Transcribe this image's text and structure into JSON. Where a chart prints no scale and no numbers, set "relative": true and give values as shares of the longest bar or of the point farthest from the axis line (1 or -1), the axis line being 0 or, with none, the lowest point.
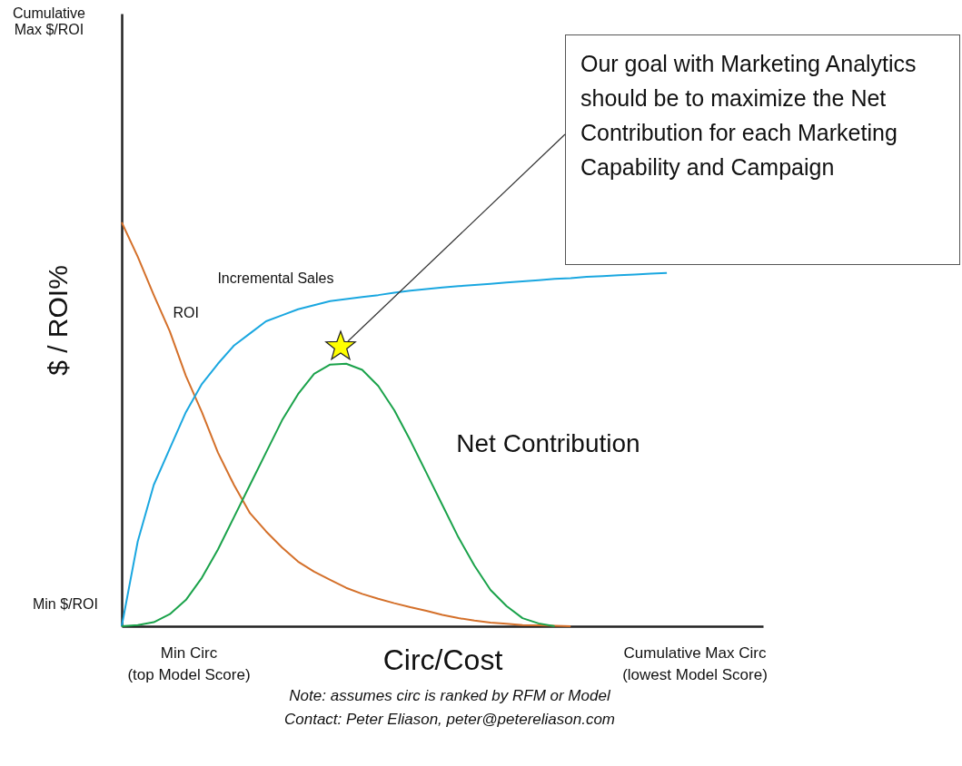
{
  "chart_data": {
    "type": "line",
    "relative": true,
    "xlabel": "Circ/Cost",
    "ylabel": "$ / ROI%",
    "categories": [
      null,
      null,
      null,
      null,
      null,
      null,
      null,
      null,
      null,
      null,
      null,
      null,
      null,
      null,
      null,
      null,
      null,
      null,
      null,
      null,
      null,
      null,
      null,
      null,
      null,
      null,
      null,
      null,
      null,
      null,
      null,
      null,
      null,
      null,
      null
    ],
    "series": [
      {
        "name": "ROI",
        "color": "#d4702a",
        "values": [
          1,
          0.915,
          0.82,
          0.73,
          0.62,
          0.53,
          0.43,
          0.35,
          0.28,
          0.235,
          0.195,
          0.16,
          0.135,
          0.115,
          0.095,
          0.08,
          0.068,
          0.057,
          0.047,
          0.038,
          0.028,
          0.02,
          0.014,
          0.009,
          0.006,
          0.003,
          0.002,
          0.001,
          0,
          null,
          null,
          null,
          null,
          null,
          null
        ]
      },
      {
        "name": "Incremental Sales",
        "color": "#1aa7e0",
        "values": [
          0,
          0.21,
          0.35,
          0.44,
          0.53,
          0.6,
          0.65,
          0.695,
          0.725,
          0.755,
          0.77,
          0.785,
          0.795,
          0.805,
          0.81,
          0.815,
          0.82,
          0.826,
          0.831,
          0.835,
          0.839,
          0.842,
          0.845,
          0.848,
          0.851,
          0.854,
          0.857,
          0.86,
          0.862,
          0.865,
          0.867,
          0.869,
          0.871,
          0.873,
          0.875
        ]
      },
      {
        "name": "Net Contribution",
        "color": "#1aa24a",
        "values": [
          0,
          0.003,
          0.01,
          0.03,
          0.065,
          0.12,
          0.19,
          0.27,
          0.35,
          0.43,
          0.51,
          0.575,
          0.625,
          0.648,
          0.65,
          0.635,
          0.595,
          0.535,
          0.46,
          0.38,
          0.3,
          0.22,
          0.15,
          0.09,
          0.05,
          0.02,
          0.007,
          0,
          null,
          null,
          null,
          null,
          null,
          null,
          null
        ]
      }
    ],
    "annotations": [
      "Our goal with Marketing Analytics should be to maximize the Net Contribution for each Marketing Capability and Campaign",
      "Note: assumes circ is ranked by RFM or Model",
      "Contact: Peter Eliason, peter@petereliason.com",
      "Cumulative\nMax $/ROI",
      "Min $/ROI",
      "Min Circ\n(top Model Score)",
      "Cumulative Max Circ\n(lowest Model Score)"
    ],
    "marker": "none",
    "line_style": "solid"
  }
}
